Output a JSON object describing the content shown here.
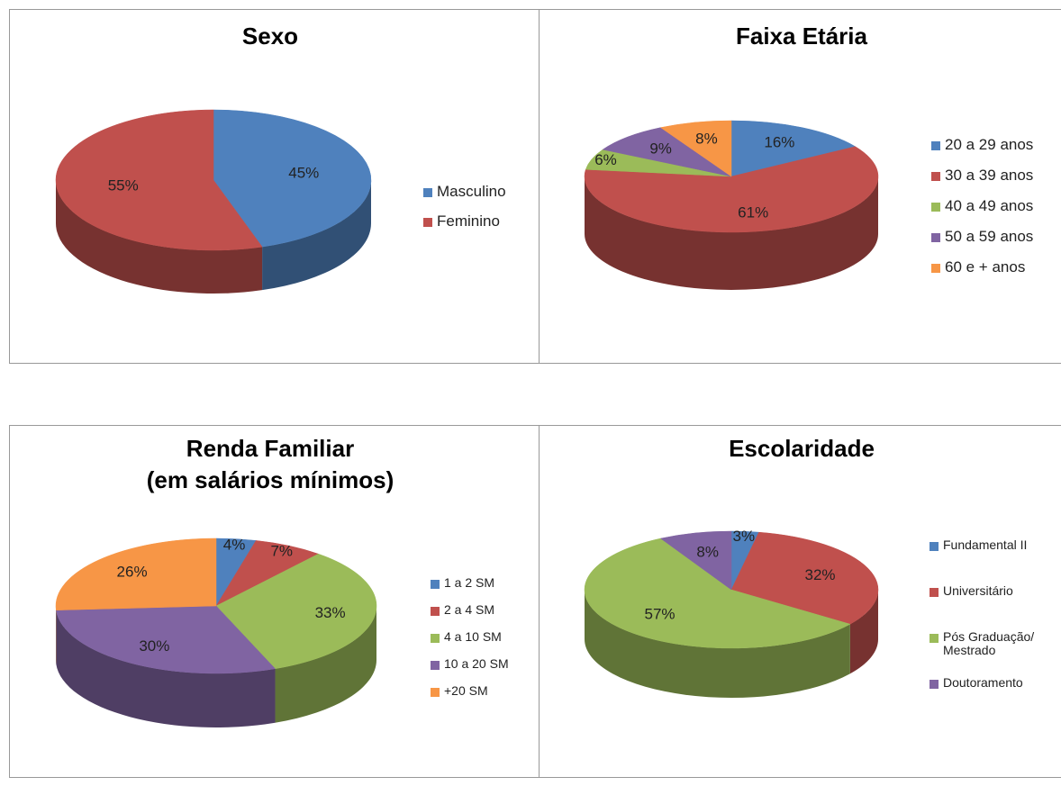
{
  "chart_data": [
    {
      "type": "pie3d",
      "title": "Sexo",
      "categories": [
        "Masculino",
        "Feminino"
      ],
      "values": [
        45,
        55
      ],
      "value_labels": [
        "45%",
        "55%"
      ],
      "colors": [
        "#4f81bd",
        "#c0504d"
      ],
      "legend": "right"
    },
    {
      "type": "pie3d",
      "title": "Faixa Etária",
      "categories": [
        "20 a 29 anos",
        "30 a 39 anos",
        "40 a 49 anos",
        "50 a 59 anos",
        "60 e + anos"
      ],
      "values": [
        16,
        61,
        6,
        9,
        8
      ],
      "value_labels": [
        "16%",
        "61%",
        "6%",
        "9%",
        "8%"
      ],
      "colors": [
        "#4f81bd",
        "#c0504d",
        "#9bbb59",
        "#8064a2",
        "#f79646"
      ],
      "legend": "right"
    },
    {
      "type": "pie3d",
      "title": "Renda Familiar",
      "subtitle": "(em salários mínimos)",
      "categories": [
        "1 a 2 SM",
        "2 a 4 SM",
        "4 a 10 SM",
        "10 a 20 SM",
        "+20 SM"
      ],
      "values": [
        4,
        7,
        33,
        30,
        26
      ],
      "value_labels": [
        "4%",
        "7%",
        "33%",
        "30%",
        "26%"
      ],
      "colors": [
        "#4f81bd",
        "#c0504d",
        "#9bbb59",
        "#8064a2",
        "#f79646"
      ],
      "legend": "right"
    },
    {
      "type": "pie3d",
      "title": "Escolaridade",
      "categories": [
        "Fundamental II",
        "Universitário",
        "Pós Graduação/ Mestrado",
        "Doutoramento"
      ],
      "values": [
        3,
        32,
        57,
        8
      ],
      "value_labels": [
        "3%",
        "32%",
        "57%",
        "8%"
      ],
      "colors": [
        "#4f81bd",
        "#c0504d",
        "#9bbb59",
        "#8064a2"
      ],
      "legend": "right"
    }
  ]
}
